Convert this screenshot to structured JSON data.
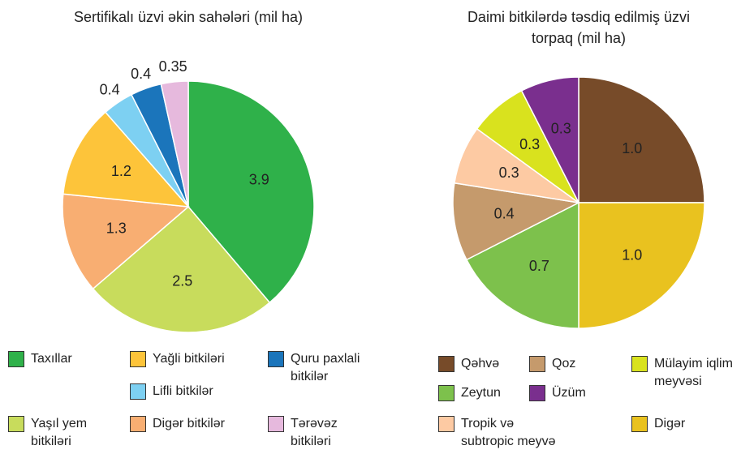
{
  "chart_data": [
    {
      "type": "pie",
      "title": "Sertifikalı üzvi əkin sahələri (mil ha)",
      "categories": [
        "Taxıllar",
        "Yaşıl yem bitkiləri",
        "Digər bitkilər",
        "Yağli bitkiləri",
        "Lifli bitkilər",
        "Quru paxlali bitkilər",
        "Tərəvəz bitkiləri"
      ],
      "values": [
        3.9,
        2.5,
        1.3,
        1.2,
        0.4,
        0.4,
        0.35
      ],
      "colors": [
        "#2fb14a",
        "#c8dc5c",
        "#f8ae72",
        "#fdc43a",
        "#7dd0f2",
        "#1b75bb",
        "#e6b9dd"
      ]
    },
    {
      "type": "pie",
      "title": "Daimi bitkilərdə təsdiq edilmiş üzvi torpaq (mil ha)",
      "categories": [
        "Qəhvə",
        "Digər",
        "Zeytun",
        "Qoz",
        "Tropik və subtropic meyvə",
        "Mülayim iqlim meyvəsi",
        "Üzüm"
      ],
      "values": [
        1,
        1,
        0.7,
        0.4,
        0.3,
        0.3,
        0.3
      ],
      "value_labels": [
        "1.0",
        "1.0",
        "0.7",
        "0.4",
        "0.3",
        "0.3",
        "0.3"
      ],
      "colors": [
        "#774b29",
        "#e9c21f",
        "#7dc14c",
        "#c59a6c",
        "#fdcaa3",
        "#d9e21e",
        "#7a2f8e"
      ]
    }
  ]
}
